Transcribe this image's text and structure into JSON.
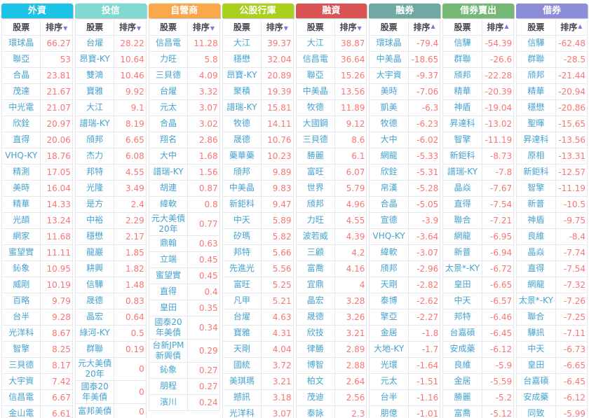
{
  "table": {
    "stock_header": "股票",
    "sort_header": "排序",
    "arrow_desc": "▼",
    "arrow_asc": "▲",
    "stock_link_color": "#46a2cf",
    "value_color": "#fa7474"
  },
  "columns": [
    {
      "title": "外資",
      "color": "#1ec3e8",
      "sort_dir": "desc",
      "rows": [
        [
          "環球晶",
          "66.27"
        ],
        [
          "聯亞",
          "53"
        ],
        [
          "合晶",
          "23.81"
        ],
        [
          "茂達",
          "21.67"
        ],
        [
          "中光電",
          "21.07"
        ],
        [
          "欣銓",
          "20.97"
        ],
        [
          "直得",
          "20.06"
        ],
        [
          "VHQ-KY",
          "18.76"
        ],
        [
          "精測",
          "17.05"
        ],
        [
          "美時",
          "16.04"
        ],
        [
          "精華",
          "14.33"
        ],
        [
          "光頡",
          "13.24"
        ],
        [
          "網家",
          "11.68"
        ],
        [
          "蜜望實",
          "11.11"
        ],
        [
          "鈊象",
          "10.95"
        ],
        [
          "威剛",
          "10.19"
        ],
        [
          "百略",
          "9.79"
        ],
        [
          "台半",
          "9.28"
        ],
        [
          "光洋科",
          "8.67"
        ],
        [
          "智擎",
          "8.25"
        ],
        [
          "三貝德",
          "8.17"
        ],
        [
          "大宇資",
          "7.42"
        ],
        [
          "信昌電",
          "6.67"
        ],
        [
          "金山電",
          "6.61"
        ]
      ]
    },
    {
      "title": "投信",
      "color": "#7ed9ce",
      "sort_dir": "desc",
      "rows": [
        [
          "台燿",
          "28.22"
        ],
        [
          "昂寶-KY",
          "10.64"
        ],
        [
          "雙鴻",
          "10.46"
        ],
        [
          "寶雅",
          "9.92"
        ],
        [
          "大江",
          "9.1"
        ],
        [
          "譜瑞-KY",
          "8.19"
        ],
        [
          "頎邦",
          "6.65"
        ],
        [
          "杰力",
          "6.08"
        ],
        [
          "邦特",
          "4.55"
        ],
        [
          "光隆",
          "3.49"
        ],
        [
          "是方",
          "2.4"
        ],
        [
          "中裕",
          "2.29"
        ],
        [
          "穩懋",
          "2.17"
        ],
        [
          "龍巖",
          "1.85"
        ],
        [
          "耕興",
          "1.82"
        ],
        [
          "信驊",
          "1.48"
        ],
        [
          "晟德",
          "0.83"
        ],
        [
          "晶宏",
          "0.64"
        ],
        [
          "綠河-KY",
          "0.5"
        ],
        [
          "群聯",
          "0.19"
        ],
        [
          "元大美債20年",
          "0"
        ],
        [
          "國泰20年美債",
          "0"
        ],
        [
          "富邦美債",
          "0"
        ]
      ]
    },
    {
      "title": "自營商",
      "color": "#fba74b",
      "sort_dir": "desc",
      "rows": [
        [
          "信昌電",
          "11.28"
        ],
        [
          "力旺",
          "5.8"
        ],
        [
          "三貝德",
          "4.09"
        ],
        [
          "台燿",
          "3.32"
        ],
        [
          "元太",
          "3.07"
        ],
        [
          "合晶",
          "3.02"
        ],
        [
          "翔名",
          "2.86"
        ],
        [
          "大中",
          "1.68"
        ],
        [
          "譜瑞-KY",
          "1.56"
        ],
        [
          "胡連",
          "0.87"
        ],
        [
          "緯軟",
          "0.8"
        ],
        [
          "元大美債20年",
          "0.77"
        ],
        [
          "鼎翰",
          "0.63"
        ],
        [
          "立端",
          "0.45"
        ],
        [
          "蜜望實",
          "0.45"
        ],
        [
          "直得",
          "0.4"
        ],
        [
          "皇田",
          "0.35"
        ],
        [
          "國泰20年美債",
          "0.34"
        ],
        [
          "台新JPM新興債",
          "0.29"
        ],
        [
          "鈊象",
          "0.27"
        ],
        [
          "朋程",
          "0.27"
        ],
        [
          "濱川",
          "0.24"
        ]
      ]
    },
    {
      "title": "公股行庫",
      "color": "#aad01e",
      "sort_dir": "desc",
      "rows": [
        [
          "大江",
          "39.37"
        ],
        [
          "穩懋",
          "32.04"
        ],
        [
          "昂寶-KY",
          "20.89"
        ],
        [
          "聚積",
          "19.39"
        ],
        [
          "譜瑞-KY",
          "15.81"
        ],
        [
          "牧德",
          "14.11"
        ],
        [
          "晟德",
          "10.76"
        ],
        [
          "藥華藥",
          "10.23"
        ],
        [
          "頎邦",
          "9.89"
        ],
        [
          "中美晶",
          "9.83"
        ],
        [
          "新鉅科",
          "9.47"
        ],
        [
          "中天",
          "5.89"
        ],
        [
          "矽瑪",
          "5.82"
        ],
        [
          "邦特",
          "5.66"
        ],
        [
          "先進光",
          "5.56"
        ],
        [
          "富旺",
          "5.25"
        ],
        [
          "凡甲",
          "5.21"
        ],
        [
          "台燿",
          "4.63"
        ],
        [
          "寶雅",
          "4.31"
        ],
        [
          "天剛",
          "4.04"
        ],
        [
          "國統",
          "3.72"
        ],
        [
          "美琪瑪",
          "3.21"
        ],
        [
          "撼訊",
          "3.18"
        ],
        [
          "光洋科",
          "3.07"
        ]
      ]
    },
    {
      "title": "融資",
      "color": "#d95452",
      "sort_dir": "desc",
      "rows": [
        [
          "大江",
          "38.87"
        ],
        [
          "信昌電",
          "36.64"
        ],
        [
          "聯亞",
          "15.26"
        ],
        [
          "中美晶",
          "13.56"
        ],
        [
          "牧德",
          "11.89"
        ],
        [
          "大國鋼",
          "9.12"
        ],
        [
          "三貝德",
          "8.6"
        ],
        [
          "勝麗",
          "6.1"
        ],
        [
          "富旺",
          "6.07"
        ],
        [
          "世界",
          "5.79"
        ],
        [
          "頎邦",
          "4.96"
        ],
        [
          "力旺",
          "4.55"
        ],
        [
          "波若威",
          "4.39"
        ],
        [
          "三顧",
          "4.2"
        ],
        [
          "富喬",
          "4.16"
        ],
        [
          "宜鼎",
          "4"
        ],
        [
          "晶宏",
          "3.28"
        ],
        [
          "晟德",
          "3.26"
        ],
        [
          "欣技",
          "3.21"
        ],
        [
          "律勝",
          "2.89"
        ],
        [
          "博智",
          "2.88"
        ],
        [
          "柏文",
          "2.64"
        ],
        [
          "茂迪",
          "2.56"
        ],
        [
          "泰詠",
          "2.3"
        ]
      ]
    },
    {
      "title": "融券",
      "color": "#70a8a2",
      "sort_dir": "asc",
      "rows": [
        [
          "環球晶",
          "-79.4"
        ],
        [
          "中美晶",
          "-18.65"
        ],
        [
          "大宇資",
          "-9.37"
        ],
        [
          "美時",
          "-7.06"
        ],
        [
          "凱美",
          "-6.3"
        ],
        [
          "牧德",
          "-6.23"
        ],
        [
          "大中",
          "-6.02"
        ],
        [
          "網龍",
          "-5.33"
        ],
        [
          "欣銓",
          "-5.31"
        ],
        [
          "帛漢",
          "-5.28"
        ],
        [
          "合晶",
          "-5.05"
        ],
        [
          "宣德",
          "-3.9"
        ],
        [
          "VHQ-KY",
          "-3.64"
        ],
        [
          "緯軟",
          "-3.07"
        ],
        [
          "頎邦",
          "-2.96"
        ],
        [
          "天剛",
          "-2.82"
        ],
        [
          "泰博",
          "-2.62"
        ],
        [
          "擎亞",
          "-2.27"
        ],
        [
          "金居",
          "-1.8"
        ],
        [
          "大地-KY",
          "-1.7"
        ],
        [
          "光環",
          "-1.64"
        ],
        [
          "元太",
          "-1.51"
        ],
        [
          "台半",
          "-1.16"
        ],
        [
          "朋億",
          "-1.01"
        ]
      ]
    },
    {
      "title": "借券賣出",
      "color": "#75b875",
      "sort_dir": "asc",
      "rows": [
        [
          "信驊",
          "-54.39"
        ],
        [
          "群聯",
          "-26.6"
        ],
        [
          "頎邦",
          "-22.28"
        ],
        [
          "精華",
          "-20.39"
        ],
        [
          "神盾",
          "-19.04"
        ],
        [
          "昇達科",
          "-13.02"
        ],
        [
          "智擎",
          "-11.19"
        ],
        [
          "新鉅科",
          "-8.73"
        ],
        [
          "譜瑞-KY",
          "-7.8"
        ],
        [
          "晶焱",
          "-7.67"
        ],
        [
          "直得",
          "-7.54"
        ],
        [
          "聯合",
          "-7.21"
        ],
        [
          "網龍",
          "-6.95"
        ],
        [
          "新普",
          "-6.94"
        ],
        [
          "太景*-KY",
          "-6.72"
        ],
        [
          "皇田",
          "-6.65"
        ],
        [
          "中天",
          "-6.57"
        ],
        [
          "邦特",
          "-6.46"
        ],
        [
          "台嘉碩",
          "-6.45"
        ],
        [
          "安成藥",
          "-6.12"
        ],
        [
          "良維",
          "-5.9"
        ],
        [
          "金居",
          "-5.59"
        ],
        [
          "勝麗",
          "-5.2"
        ],
        [
          "富喬",
          "-5.12"
        ]
      ]
    },
    {
      "title": "借券",
      "color": "#8c8cd8",
      "sort_dir": "asc",
      "rows": [
        [
          "信驊",
          "-62.48"
        ],
        [
          "群聯",
          "-28.5"
        ],
        [
          "頎邦",
          "-21.44"
        ],
        [
          "精華",
          "-20.94"
        ],
        [
          "穩懋",
          "-20.86"
        ],
        [
          "聖暉",
          "-15.65"
        ],
        [
          "昇達科",
          "-13.56"
        ],
        [
          "原相",
          "-13.31"
        ],
        [
          "新鉅科",
          "-12.57"
        ],
        [
          "智擎",
          "-11.19"
        ],
        [
          "新普",
          "-10.5"
        ],
        [
          "神盾",
          "-9.75"
        ],
        [
          "良維",
          "-8.4"
        ],
        [
          "晶焱",
          "-7.74"
        ],
        [
          "直得",
          "-7.54"
        ],
        [
          "網龍",
          "-7.32"
        ],
        [
          "太景*-KY",
          "-7.26"
        ],
        [
          "聯合",
          "-7.25"
        ],
        [
          "驊訊",
          "-7.11"
        ],
        [
          "中天",
          "-6.73"
        ],
        [
          "皇田",
          "-6.65"
        ],
        [
          "台嘉碩",
          "-6.45"
        ],
        [
          "安成藥",
          "-6.12"
        ],
        [
          "同致",
          "-5.99"
        ]
      ]
    }
  ]
}
